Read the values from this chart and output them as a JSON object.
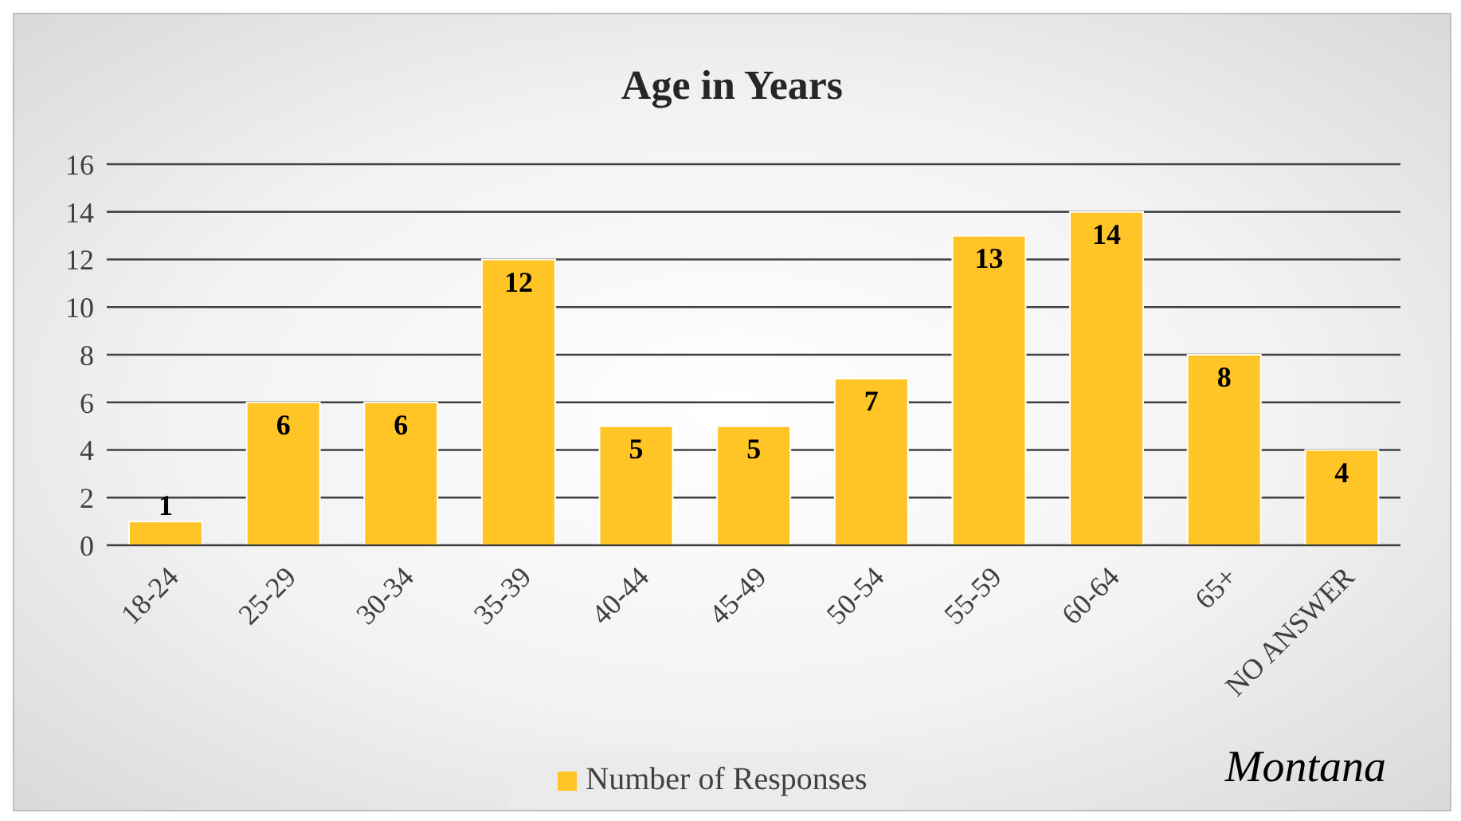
{
  "chart_data": {
    "type": "bar",
    "title": "Age in Years",
    "categories": [
      "18-24",
      "25-29",
      "30-34",
      "35-39",
      "40-44",
      "45-49",
      "50-54",
      "55-59",
      "60-64",
      "65+",
      "NO ANSWER"
    ],
    "series": [
      {
        "name": "Number of Responses",
        "color": "#ffc425",
        "values": [
          1,
          6,
          6,
          12,
          5,
          5,
          7,
          13,
          14,
          8,
          4
        ]
      }
    ],
    "ylim": [
      0,
      16
    ],
    "yticks": [
      0,
      2,
      4,
      6,
      8,
      10,
      12,
      14,
      16
    ],
    "grid": "y",
    "legend": "bottom",
    "data_labels": true,
    "annotations": [
      "Montana"
    ]
  }
}
